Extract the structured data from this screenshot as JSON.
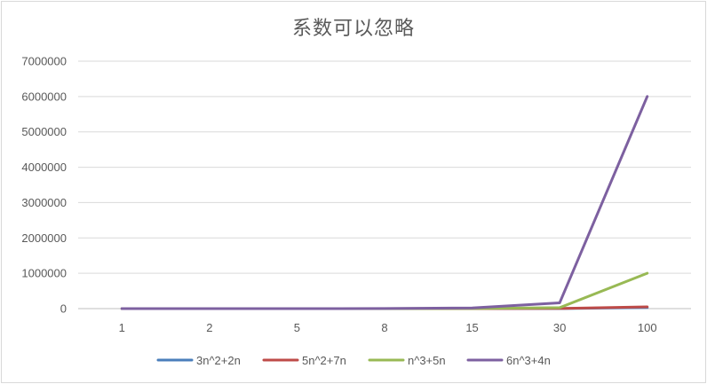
{
  "chart_data": {
    "type": "line",
    "title": "系数可以忽略",
    "xlabel": "",
    "ylabel": "",
    "categories": [
      "1",
      "2",
      "5",
      "8",
      "15",
      "30",
      "100"
    ],
    "ylim": [
      0,
      7000000
    ],
    "yticks": [
      "0",
      "1000000",
      "2000000",
      "3000000",
      "4000000",
      "5000000",
      "6000000",
      "7000000"
    ],
    "ytick_values": [
      0,
      1000000,
      2000000,
      3000000,
      4000000,
      5000000,
      6000000,
      7000000
    ],
    "grid": true,
    "legend_position": "bottom",
    "series": [
      {
        "name": "3n^2+2n",
        "color": "#4a7ebb",
        "values": [
          5,
          16,
          85,
          208,
          705,
          2760,
          30200
        ]
      },
      {
        "name": "5n^2+7n",
        "color": "#be4b48",
        "values": [
          12,
          34,
          160,
          376,
          1230,
          4710,
          50700
        ]
      },
      {
        "name": "n^3+5n",
        "color": "#98b954",
        "values": [
          6,
          18,
          150,
          552,
          3450,
          27150,
          1000500
        ]
      },
      {
        "name": "6n^3+4n",
        "color": "#7d60a0",
        "values": [
          10,
          56,
          770,
          3104,
          20310,
          162120,
          6000400
        ]
      }
    ]
  }
}
